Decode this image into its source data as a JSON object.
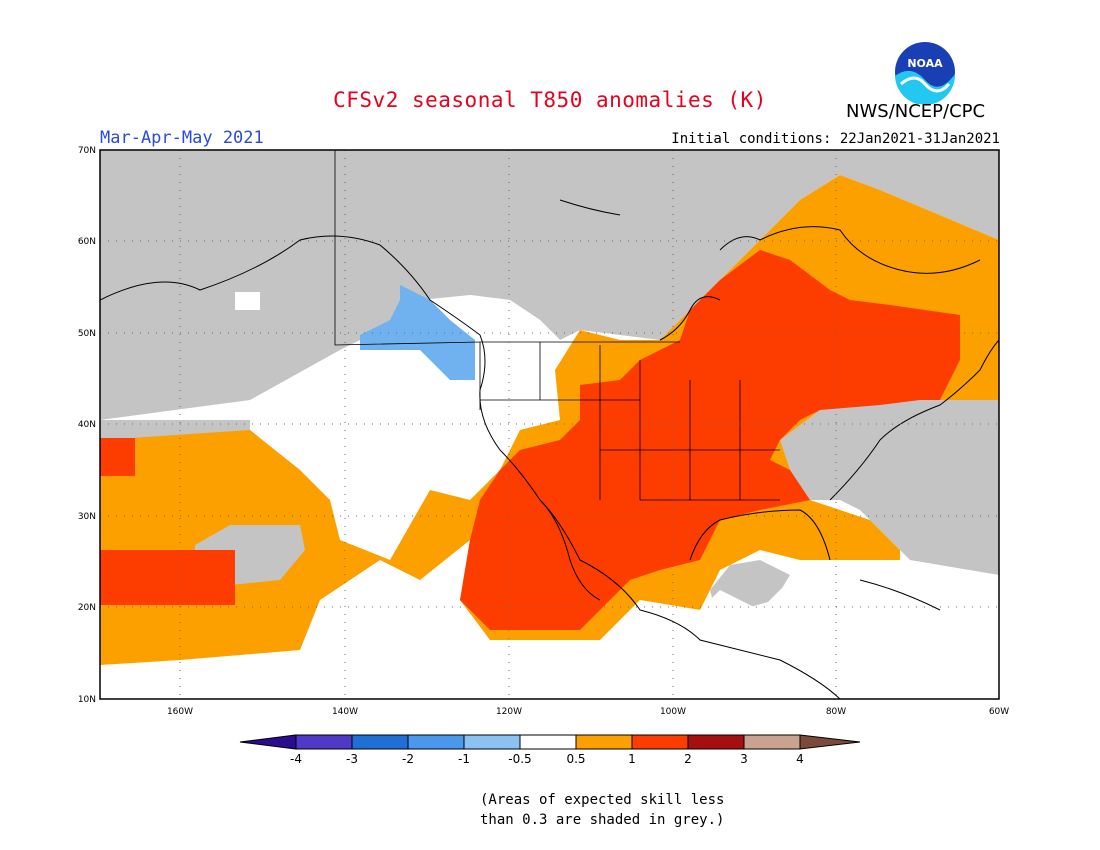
{
  "title": "CFSv2 seasonal T850 anomalies (K)",
  "organization": "NWS/NCEP/CPC",
  "logo_text": "NOAA",
  "season": "Mar-Apr-May 2021",
  "initial_conditions": "Initial conditions: 22Jan2021-31Jan2021",
  "note_line1": "(Areas of expected skill less",
  "note_line2": "than 0.3 are shaded in grey.)",
  "map": {
    "lon_range": [
      -172,
      -60
    ],
    "lat_range": [
      10,
      70
    ],
    "lat_ticks": [
      "10N",
      "20N",
      "30N",
      "40N",
      "50N",
      "60N",
      "70N"
    ],
    "lon_ticks": [
      "160W",
      "140W",
      "120W",
      "100W",
      "80W",
      "60W"
    ],
    "legend_colors": {
      "grey_low_skill": "#c4c4c4",
      "neutral": "#ffffff",
      "neg_0.5_1": "#6fb2ef",
      "pos_0.5_1": "#fca000",
      "pos_1_2": "#fd3c00"
    }
  },
  "colorbar": {
    "labels": [
      "-4",
      "-3",
      "-2",
      "-1",
      "-0.5",
      "0.5",
      "1",
      "2",
      "3",
      "4"
    ],
    "colors": [
      "#2b0b8f",
      "#5039c6",
      "#1f6fd6",
      "#4a97ee",
      "#8bc2f3",
      "#ffffff",
      "#fca000",
      "#fd3c00",
      "#a60f0f",
      "#c9a290",
      "#7b4a3a"
    ]
  }
}
